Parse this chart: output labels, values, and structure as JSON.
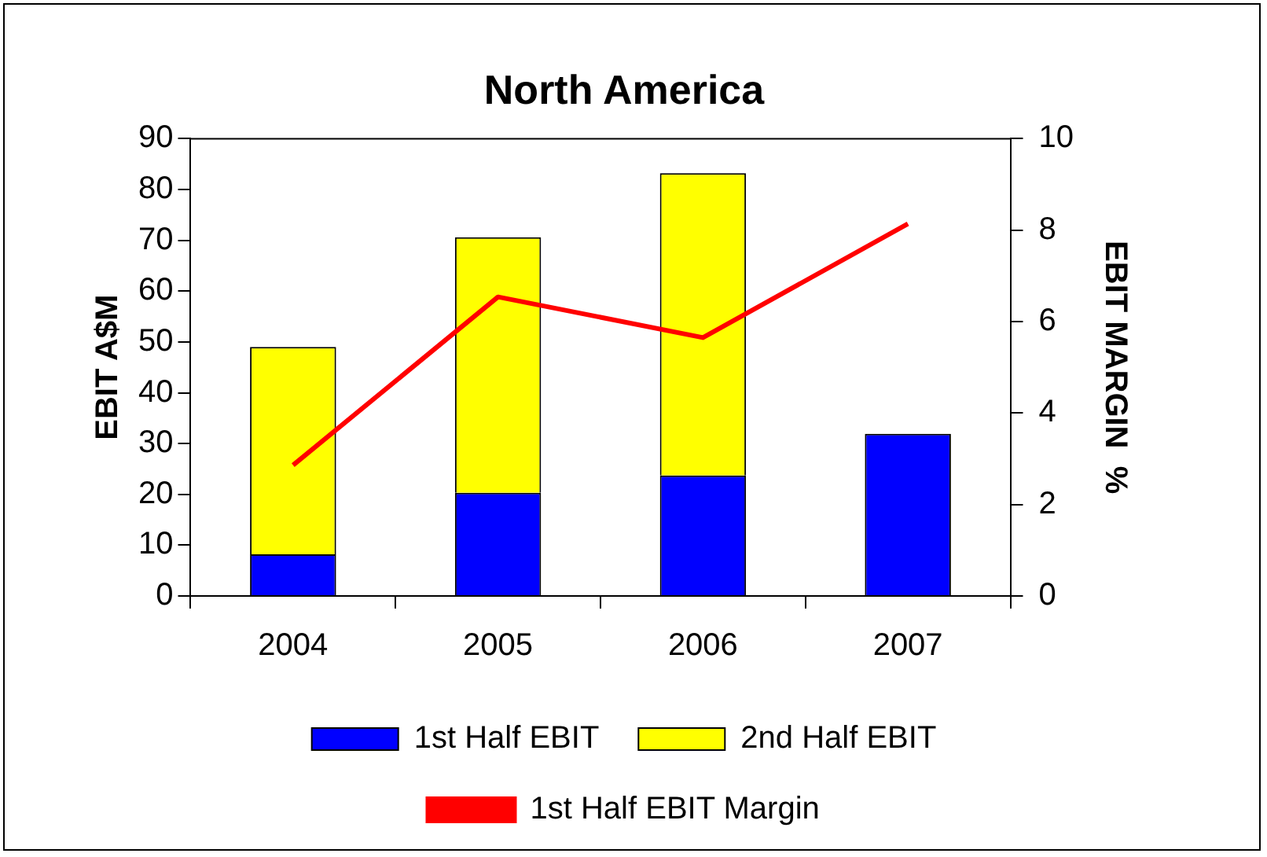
{
  "chart_data": {
    "type": "bar",
    "title": "North America",
    "ylabel": "EBIT A$M",
    "y2label": "EBIT MARGIN  %",
    "categories": [
      "2004",
      "2005",
      "2006",
      "2007"
    ],
    "stacked": true,
    "series": [
      {
        "name": "1st Half EBIT",
        "color": "#0000ff",
        "values": [
          8.2,
          20.3,
          23.7,
          31.9
        ]
      },
      {
        "name": "2nd Half EBIT",
        "color": "#ffff00",
        "values": [
          40.8,
          50.3,
          59.5,
          null
        ]
      },
      {
        "name": "1st Half EBIT Margin",
        "type": "line",
        "axis": "y2",
        "color": "#ff0000",
        "values": [
          2.86,
          6.54,
          5.65,
          8.14
        ]
      }
    ],
    "ylim": [
      0,
      90
    ],
    "yticks": [
      0,
      10,
      20,
      30,
      40,
      50,
      60,
      70,
      80,
      90
    ],
    "y2lim": [
      0,
      10
    ],
    "y2ticks": [
      0,
      2,
      4,
      6,
      8,
      10
    ],
    "grid": false,
    "legend": "bottom",
    "marker": "none"
  }
}
